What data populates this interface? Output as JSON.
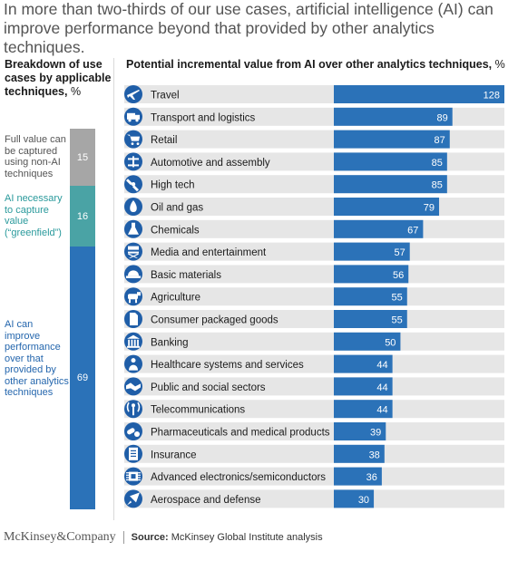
{
  "title_line1": "In more than two-thirds of our use cases, artificial intelligence (AI) can",
  "title_line2": "improve performance beyond that provided by other analytics techniques.",
  "left_heading": "Breakdown of use cases by applicable techniques,",
  "left_unit": "%",
  "right_heading": "Potential incremental value from AI over other analytics techniques,",
  "right_unit": "%",
  "breakdown": [
    {
      "label": "Full value can be captured using non-AI techniques",
      "value": 15,
      "color": "#a6a6a6",
      "label_color": "#545454"
    },
    {
      "label": "AI necessary to capture value (“greenfield”)",
      "value": 16,
      "color": "#4aa3a5",
      "label_color": "#2a9a9c"
    },
    {
      "label": "AI can improve performance over that provided by other analytics techniques",
      "value": 69,
      "color": "#2b72b8",
      "label_color": "#2466ad"
    }
  ],
  "colors": {
    "bar": "#2b72b8",
    "icon_bg": "#1f5ea8",
    "row_bg": "#e6e6e6"
  },
  "chart_data": {
    "type": "bar",
    "orientation": "horizontal",
    "categories": [
      "Travel",
      "Transport and logistics",
      "Retail",
      "Automotive and assembly",
      "High tech",
      "Oil and gas",
      "Chemicals",
      "Media and entertainment",
      "Basic materials",
      "Agriculture",
      "Consumer packaged goods",
      "Banking",
      "Healthcare systems and services",
      "Public and social sectors",
      "Telecommunications",
      "Pharmaceuticals and medical products",
      "Insurance",
      "Advanced electronics/semiconductors",
      "Aerospace and defense"
    ],
    "values": [
      128,
      89,
      87,
      85,
      85,
      79,
      67,
      57,
      56,
      55,
      55,
      50,
      44,
      44,
      44,
      39,
      38,
      36,
      30
    ],
    "icons": [
      "plane-icon",
      "truck-icon",
      "cart-icon",
      "car-chassis-icon",
      "satellite-icon",
      "oil-drop-icon",
      "flask-icon",
      "director-chair-icon",
      "hard-hat-icon",
      "cow-icon",
      "package-icon",
      "bank-icon",
      "health-icon",
      "handshake-icon",
      "antenna-icon",
      "pills-icon",
      "document-icon",
      "chip-icon",
      "rocket-icon"
    ],
    "xlim": [
      0,
      128
    ],
    "grid": false,
    "legend": "none"
  },
  "footer": {
    "brand": "McKinsey&Company",
    "source_label": "Source:",
    "source_text": "McKinsey Global Institute analysis"
  }
}
